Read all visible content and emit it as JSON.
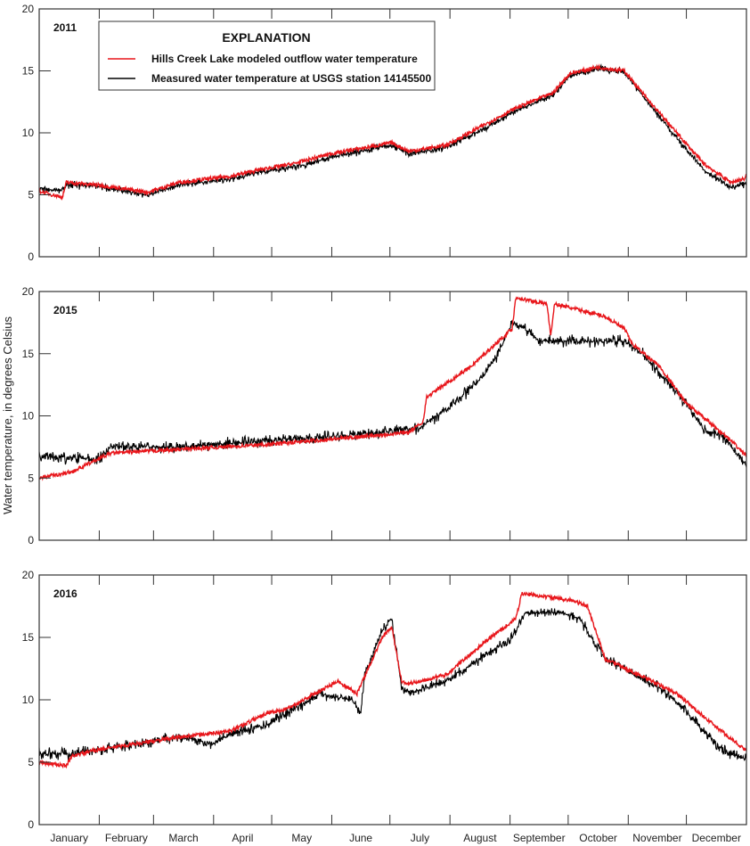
{
  "chart_data": {
    "type": "line",
    "ylabel": "Water temperature, in degrees Celsius",
    "ylim": [
      0,
      20
    ],
    "yticks": [
      0,
      5,
      10,
      15,
      20
    ],
    "xunit": "day of year",
    "xlim": [
      0,
      365
    ],
    "months": [
      "January",
      "February",
      "March",
      "April",
      "May",
      "June",
      "July",
      "August",
      "September",
      "October",
      "November",
      "December"
    ],
    "month_starts": [
      0,
      31,
      59,
      90,
      120,
      151,
      181,
      212,
      243,
      273,
      304,
      334,
      365
    ],
    "legend": {
      "title": "EXPLANATION",
      "position": "top-left",
      "entries": [
        {
          "label": "Hills Creek Lake modeled outflow water temperature",
          "color": "#e8161b"
        },
        {
          "label": "Measured water temperature at USGS station 14145500",
          "color": "#000000"
        }
      ]
    },
    "panels": [
      {
        "year": "2011",
        "series": [
          {
            "name": "Hills Creek Lake modeled outflow water temperature",
            "color": "#e8161b",
            "noise": 0.15,
            "points": [
              [
                0,
                5.3
              ],
              [
                7,
                5.0
              ],
              [
                12,
                4.8
              ],
              [
                14,
                6.0
              ],
              [
                30,
                5.8
              ],
              [
                56,
                5.2
              ],
              [
                72,
                6.0
              ],
              [
                99,
                6.5
              ],
              [
                113,
                7.0
              ],
              [
                131,
                7.5
              ],
              [
                150,
                8.3
              ],
              [
                168,
                8.8
              ],
              [
                182,
                9.2
              ],
              [
                191,
                8.5
              ],
              [
                210,
                9.0
              ],
              [
                228,
                10.5
              ],
              [
                246,
                12
              ],
              [
                265,
                13.2
              ],
              [
                274,
                14.8
              ],
              [
                288,
                15.3
              ],
              [
                302,
                15.0
              ],
              [
                315,
                12.5
              ],
              [
                329,
                10.0
              ],
              [
                343,
                7.5
              ],
              [
                357,
                6.0
              ],
              [
                364,
                6.3
              ],
              [
                365,
                6.6
              ]
            ]
          },
          {
            "name": "Measured water temperature at USGS station 14145500",
            "color": "#000000",
            "noise": 0.35,
            "points": [
              [
                0,
                5.5
              ],
              [
                12,
                5.3
              ],
              [
                14,
                5.8
              ],
              [
                30,
                5.7
              ],
              [
                56,
                5.0
              ],
              [
                72,
                5.8
              ],
              [
                99,
                6.3
              ],
              [
                113,
                6.8
              ],
              [
                131,
                7.2
              ],
              [
                150,
                8.0
              ],
              [
                168,
                8.6
              ],
              [
                182,
                9.0
              ],
              [
                191,
                8.3
              ],
              [
                210,
                8.8
              ],
              [
                228,
                10.2
              ],
              [
                246,
                11.8
              ],
              [
                265,
                13.0
              ],
              [
                274,
                14.6
              ],
              [
                288,
                15.2
              ],
              [
                302,
                14.9
              ],
              [
                315,
                12.3
              ],
              [
                329,
                9.6
              ],
              [
                343,
                7.0
              ],
              [
                357,
                5.6
              ],
              [
                365,
                5.9
              ]
            ]
          }
        ]
      },
      {
        "year": "2015",
        "series": [
          {
            "name": "Hills Creek Lake modeled outflow water temperature",
            "color": "#e8161b",
            "noise": 0.15,
            "points": [
              [
                0,
                5.0
              ],
              [
                17,
                5.5
              ],
              [
                30,
                6.5
              ],
              [
                37,
                7.0
              ],
              [
                72,
                7.3
              ],
              [
                118,
                7.7
              ],
              [
                164,
                8.3
              ],
              [
                191,
                8.7
              ],
              [
                198,
                9.5
              ],
              [
                200,
                11.5
              ],
              [
                223,
                14.0
              ],
              [
                244,
                17.0
              ],
              [
                246,
                19.5
              ],
              [
                262,
                19.0
              ],
              [
                264,
                16.5
              ],
              [
                266,
                19.0
              ],
              [
                292,
                18.0
              ],
              [
                302,
                17.0
              ],
              [
                306,
                15.8
              ],
              [
                320,
                14.0
              ],
              [
                334,
                11.0
              ],
              [
                348,
                9.2
              ],
              [
                357,
                8.0
              ],
              [
                365,
                6.8
              ]
            ]
          },
          {
            "name": "Measured water temperature at USGS station 14145500",
            "color": "#000000",
            "noise": 0.6,
            "points": [
              [
                0,
                6.8
              ],
              [
                30,
                6.5
              ],
              [
                37,
                7.5
              ],
              [
                72,
                7.5
              ],
              [
                164,
                8.5
              ],
              [
                196,
                9.0
              ],
              [
                200,
                9.5
              ],
              [
                214,
                11.0
              ],
              [
                228,
                13.0
              ],
              [
                237,
                15.0
              ],
              [
                244,
                17.5
              ],
              [
                251,
                17.0
              ],
              [
                258,
                16.0
              ],
              [
                302,
                16.0
              ],
              [
                311,
                15.0
              ],
              [
                334,
                11.0
              ],
              [
                343,
                8.8
              ],
              [
                352,
                8.5
              ],
              [
                365,
                6.0
              ]
            ]
          }
        ]
      },
      {
        "year": "2016",
        "series": [
          {
            "name": "Hills Creek Lake modeled outflow water temperature",
            "color": "#e8161b",
            "noise": 0.15,
            "points": [
              [
                0,
                5.0
              ],
              [
                14,
                4.7
              ],
              [
                17,
                5.5
              ],
              [
                30,
                6.0
              ],
              [
                72,
                7.0
              ],
              [
                99,
                7.5
              ],
              [
                118,
                9.0
              ],
              [
                127,
                9.2
              ],
              [
                154,
                11.5
              ],
              [
                164,
                10.5
              ],
              [
                177,
                15.0
              ],
              [
                182,
                15.8
              ],
              [
                187,
                11.5
              ],
              [
                191,
                11.3
              ],
              [
                210,
                12.0
              ],
              [
                233,
                15.0
              ],
              [
                246,
                16.5
              ],
              [
                249,
                18.5
              ],
              [
                274,
                18.0
              ],
              [
                283,
                17.5
              ],
              [
                292,
                13.3
              ],
              [
                320,
                11.2
              ],
              [
                329,
                10.5
              ],
              [
                348,
                8.0
              ],
              [
                365,
                5.9
              ]
            ]
          },
          {
            "name": "Measured water temperature at USGS station 14145500",
            "color": "#000000",
            "noise": 0.55,
            "points": [
              [
                0,
                5.7
              ],
              [
                17,
                5.7
              ],
              [
                30,
                6.0
              ],
              [
                72,
                7.0
              ],
              [
                90,
                6.5
              ],
              [
                99,
                7.3
              ],
              [
                118,
                8.0
              ],
              [
                145,
                10.5
              ],
              [
                161,
                10.0
              ],
              [
                166,
                9.0
              ],
              [
                168,
                12.0
              ],
              [
                177,
                15.5
              ],
              [
                182,
                16.5
              ],
              [
                187,
                11.0
              ],
              [
                191,
                10.5
              ],
              [
                210,
                11.5
              ],
              [
                244,
                15.0
              ],
              [
                251,
                17.0
              ],
              [
                269,
                17.0
              ],
              [
                279,
                16.5
              ],
              [
                292,
                13.3
              ],
              [
                320,
                11.0
              ],
              [
                334,
                9.0
              ],
              [
                352,
                6.0
              ],
              [
                365,
                5.3
              ]
            ]
          }
        ]
      }
    ]
  }
}
